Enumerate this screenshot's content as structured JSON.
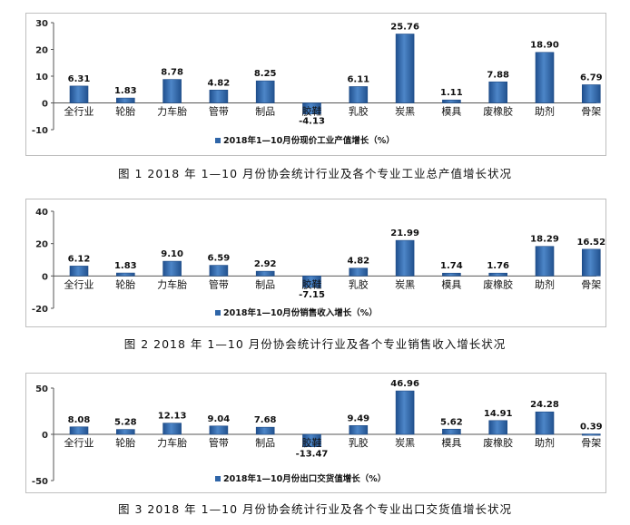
{
  "chart_data": [
    {
      "type": "bar",
      "categories": [
        "全行业",
        "轮胎",
        "力车胎",
        "管带",
        "制品",
        "胶鞋",
        "乳胶",
        "炭黑",
        "模具",
        "废橡胶",
        "助剂",
        "骨架"
      ],
      "values": [
        6.31,
        1.83,
        8.78,
        4.82,
        8.25,
        -4.13,
        6.11,
        25.76,
        1.11,
        7.88,
        18.9,
        6.79
      ],
      "value_labels": [
        "6.31",
        "1.83",
        "8.78",
        "4.82",
        "8.25",
        "-4.13",
        "6.11",
        "25.76",
        "1.11",
        "7.88",
        "18.90",
        "6.79"
      ],
      "yticks": [
        "30",
        "20",
        "10",
        "0",
        "-10"
      ],
      "ylim": [
        -10,
        30
      ],
      "legend": "2018年1—10月份现价工业产值增长（%）",
      "caption": "图 1  2018 年 1—10 月份协会统计行业及各个专业工业总产值增长状况",
      "bar_color": "#2f65a8"
    },
    {
      "type": "bar",
      "categories": [
        "全行业",
        "轮胎",
        "力车胎",
        "管带",
        "制品",
        "胶鞋",
        "乳胶",
        "炭黑",
        "模具",
        "废橡胶",
        "助剂",
        "骨架"
      ],
      "values": [
        6.12,
        1.83,
        9.1,
        6.59,
        2.92,
        -7.15,
        4.82,
        21.99,
        1.74,
        1.76,
        18.29,
        16.52
      ],
      "value_labels": [
        "6.12",
        "1.83",
        "9.10",
        "6.59",
        "2.92",
        "-7.15",
        "4.82",
        "21.99",
        "1.74",
        "1.76",
        "18.29",
        "16.52"
      ],
      "yticks": [
        "40",
        "20",
        "0",
        "-20"
      ],
      "ylim": [
        -20,
        40
      ],
      "legend": "2018年1—10月份销售收入增长（%）",
      "caption": "图 2  2018 年 1—10 月份协会统计行业及各个专业销售收入增长状况",
      "bar_color": "#2f65a8"
    },
    {
      "type": "bar",
      "categories": [
        "全行业",
        "轮胎",
        "力车胎",
        "管带",
        "制品",
        "胶鞋",
        "乳胶",
        "炭黑",
        "模具",
        "废橡胶",
        "助剂",
        "骨架"
      ],
      "values": [
        8.08,
        5.28,
        12.13,
        9.04,
        7.68,
        -13.47,
        9.49,
        46.96,
        5.62,
        14.91,
        24.28,
        0.39
      ],
      "value_labels": [
        "8.08",
        "5.28",
        "12.13",
        "9.04",
        "7.68",
        "-13.47",
        "9.49",
        "46.96",
        "5.62",
        "14.91",
        "24.28",
        "0.39"
      ],
      "yticks": [
        "50",
        "0",
        "-50"
      ],
      "ylim": [
        -50,
        50
      ],
      "legend": "2018年1—10月份出口交货值增长（%）",
      "caption": "图 3  2018 年 1—10 月份协会统计行业及各个专业出口交货值增长状况",
      "bar_color": "#2f65a8"
    }
  ]
}
